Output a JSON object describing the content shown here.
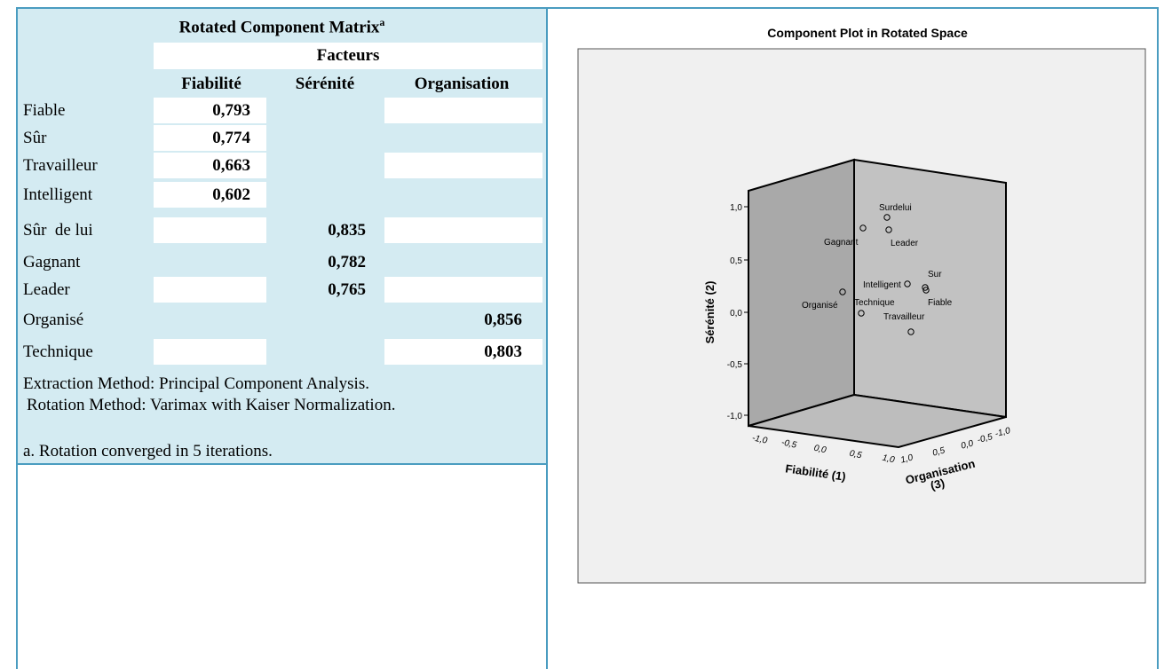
{
  "matrix": {
    "title": "Rotated Component Matrix",
    "title_note": "a",
    "group_header": "Facteurs",
    "columns": [
      "Fiabilité",
      "Sérénité",
      "Organisation"
    ],
    "rows": [
      {
        "label": "Fiable",
        "values": [
          "0,793",
          null,
          null
        ]
      },
      {
        "label": "Sûr",
        "values": [
          "0,774",
          null,
          null
        ]
      },
      {
        "label": "Travailleur",
        "values": [
          "0,663",
          null,
          null
        ]
      },
      {
        "label": "Intelligent",
        "values": [
          "0,602",
          null,
          null
        ]
      },
      {
        "label": "Sûr  de lui",
        "values": [
          null,
          "0,835",
          null
        ]
      },
      {
        "label": "Gagnant",
        "values": [
          null,
          "0,782",
          null
        ]
      },
      {
        "label": "Leader",
        "values": [
          null,
          "0,765",
          null
        ]
      },
      {
        "label": "Organisé",
        "values": [
          null,
          null,
          "0,856"
        ]
      },
      {
        "label": "Technique",
        "values": [
          null,
          null,
          "0,803"
        ]
      }
    ],
    "notes": [
      "Extraction Method: Principal Component Analysis.",
      "Rotation Method: Varimax with Kaiser Normalization.",
      "a. Rotation converged in 5 iterations."
    ]
  },
  "plot": {
    "title": "Component Plot in Rotated Space",
    "y_axis_label": "Sérénité (2)",
    "x_axis_label": "Fiabilité (1)",
    "z_axis_label": [
      "Organisation",
      "(3)"
    ],
    "y_ticks": [
      "1,0",
      "0,5",
      "0,0",
      "-0,5",
      "-1,0"
    ],
    "x_ticks": [
      "-1,0",
      "-0,5",
      "0,0",
      "0,5",
      "1,0"
    ],
    "z_ticks": [
      "1,0",
      "0,5",
      "0,0",
      "-0,5",
      "-1,0"
    ],
    "points": [
      "Surdelui",
      "Leader",
      "Gagnant",
      "Intelligent",
      "Sur",
      "Fiable",
      "Organisé",
      "Technique",
      "Travailleur"
    ]
  }
}
